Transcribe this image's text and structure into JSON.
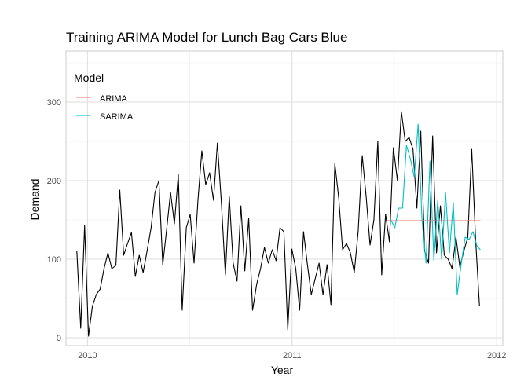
{
  "chart_data": {
    "type": "line",
    "title": "Training ARIMA Model for Lunch Bag Cars Blue",
    "xlabel": "Year",
    "ylabel": "Demand",
    "xlim": [
      2009.895,
      2012.03
    ],
    "ylim": [
      -10,
      365
    ],
    "x_ticks": [
      2010,
      2011,
      2012
    ],
    "x_tick_labels": [
      "2010",
      "2011",
      "2012"
    ],
    "y_ticks": [
      0,
      100,
      200,
      300
    ],
    "y_tick_labels": [
      "0",
      "100",
      "200",
      "300"
    ],
    "grid": true,
    "legend": {
      "title": "Model",
      "position": "top-left",
      "entries": [
        {
          "label": "ARIMA",
          "color": "#f8766d"
        },
        {
          "label": "SARIMA",
          "color": "#00bfc4"
        }
      ]
    },
    "series": [
      {
        "color": "#000000",
        "x": [
          2009.948,
          2009.967,
          2009.986,
          2010.005,
          2010.024,
          2010.043,
          2010.062,
          2010.081,
          2010.1,
          2010.119,
          2010.139,
          2010.158,
          2010.177,
          2010.196,
          2010.215,
          2010.234,
          2010.253,
          2010.272,
          2010.291,
          2010.311,
          2010.33,
          2010.349,
          2010.368,
          2010.387,
          2010.406,
          2010.425,
          2010.444,
          2010.463,
          2010.483,
          2010.502,
          2010.521,
          2010.54,
          2010.559,
          2010.578,
          2010.597,
          2010.616,
          2010.635,
          2010.655,
          2010.674,
          2010.693,
          2010.712,
          2010.731,
          2010.75,
          2010.769,
          2010.788,
          2010.807,
          2010.827,
          2010.846,
          2010.865,
          2010.884,
          2010.903,
          2010.922,
          2010.941,
          2010.96,
          2010.979,
          2010.999,
          2011.018,
          2011.037,
          2011.056,
          2011.075,
          2011.094,
          2011.113,
          2011.132,
          2011.151,
          2011.171,
          2011.19,
          2011.209,
          2011.228,
          2011.247,
          2011.266,
          2011.285,
          2011.304,
          2011.323,
          2011.343,
          2011.362,
          2011.381,
          2011.4,
          2011.419,
          2011.438,
          2011.457,
          2011.476,
          2011.495,
          2011.515,
          2011.534,
          2011.553,
          2011.572,
          2011.591,
          2011.61,
          2011.629,
          2011.648,
          2011.667,
          2011.687,
          2011.706,
          2011.725,
          2011.744,
          2011.763,
          2011.782,
          2011.801,
          2011.82,
          2011.839,
          2011.859,
          2011.878,
          2011.897,
          2011.916
        ],
        "values": [
          110,
          12,
          143,
          2,
          40,
          55,
          62,
          88,
          108,
          88,
          92,
          188,
          105,
          120,
          134,
          78,
          105,
          83,
          110,
          140,
          185,
          200,
          93,
          138,
          185,
          145,
          208,
          35,
          140,
          157,
          95,
          175,
          238,
          195,
          210,
          175,
          248,
          170,
          80,
          180,
          95,
          72,
          168,
          85,
          152,
          35,
          68,
          88,
          115,
          95,
          112,
          98,
          140,
          135,
          10,
          113,
          88,
          35,
          135,
          93,
          55,
          75,
          95,
          55,
          93,
          42,
          222,
          178,
          112,
          120,
          108,
          83,
          135,
          232,
          180,
          118,
          150,
          250,
          80,
          157,
          122,
          242,
          200,
          288,
          250,
          255,
          240,
          165,
          263,
          110,
          95,
          257,
          108,
          168,
          105,
          100,
          88,
          128,
          90,
          110,
          128,
          240,
          125,
          40
        ]
      },
      {
        "name": "ARIMA",
        "color": "#f8766d",
        "x": [
          2011.465,
          2011.92
        ],
        "values": [
          149,
          149
        ]
      },
      {
        "name": "SARIMA",
        "color": "#00bfc4",
        "x": [
          2011.483,
          2011.502,
          2011.521,
          2011.54,
          2011.559,
          2011.578,
          2011.597,
          2011.616,
          2011.635,
          2011.655,
          2011.674,
          2011.693,
          2011.712,
          2011.731,
          2011.75,
          2011.769,
          2011.788,
          2011.807,
          2011.827,
          2011.846,
          2011.865,
          2011.884,
          2011.903,
          2011.92
        ],
        "values": [
          150,
          140,
          165,
          165,
          245,
          228,
          205,
          272,
          150,
          95,
          225,
          98,
          175,
          100,
          185,
          108,
          172,
          55,
          95,
          128,
          125,
          135,
          117,
          112
        ]
      }
    ]
  }
}
